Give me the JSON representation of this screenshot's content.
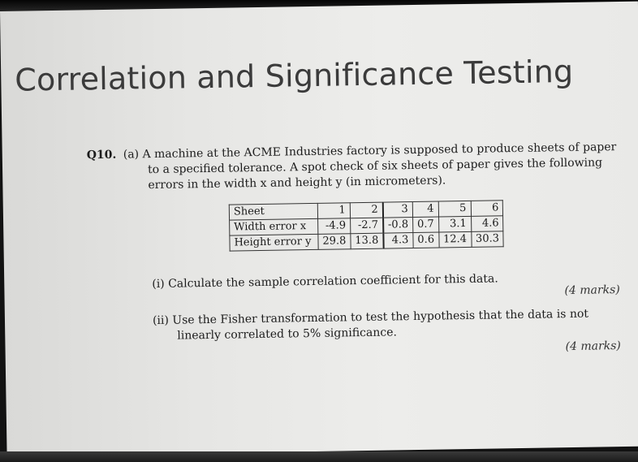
{
  "slide": {
    "title": "Correlation and Significance Testing",
    "question": {
      "number": "Q10.",
      "part": "(a)",
      "line1": "A machine at the ACME Industries factory is supposed to produce sheets of paper",
      "line2": "to a specified tolerance. A spot check of six sheets of paper gives the following",
      "line3": "errors in the width x and height y (in micrometers)."
    },
    "table": {
      "header": [
        "Sheet",
        "1",
        "2",
        "3",
        "4",
        "5",
        "6"
      ],
      "rows": [
        {
          "label": "Width error x",
          "values": [
            "-4.9",
            "-2.7",
            "-0.8",
            "0.7",
            "3.1",
            "4.6"
          ]
        },
        {
          "label": "Height error y",
          "values": [
            "29.8",
            "13.8",
            "4.3",
            "0.6",
            "12.4",
            "30.3"
          ]
        }
      ]
    },
    "parts": [
      {
        "label": "(i)",
        "line1": "Calculate the sample correlation coefficient for this data.",
        "line2": "",
        "marks": "(4 marks)"
      },
      {
        "label": "(ii)",
        "line1": "Use the Fisher transformation to test the hypothesis that the data is not",
        "line2": "linearly correlated to 5% significance.",
        "marks": "(4 marks)"
      }
    ]
  }
}
